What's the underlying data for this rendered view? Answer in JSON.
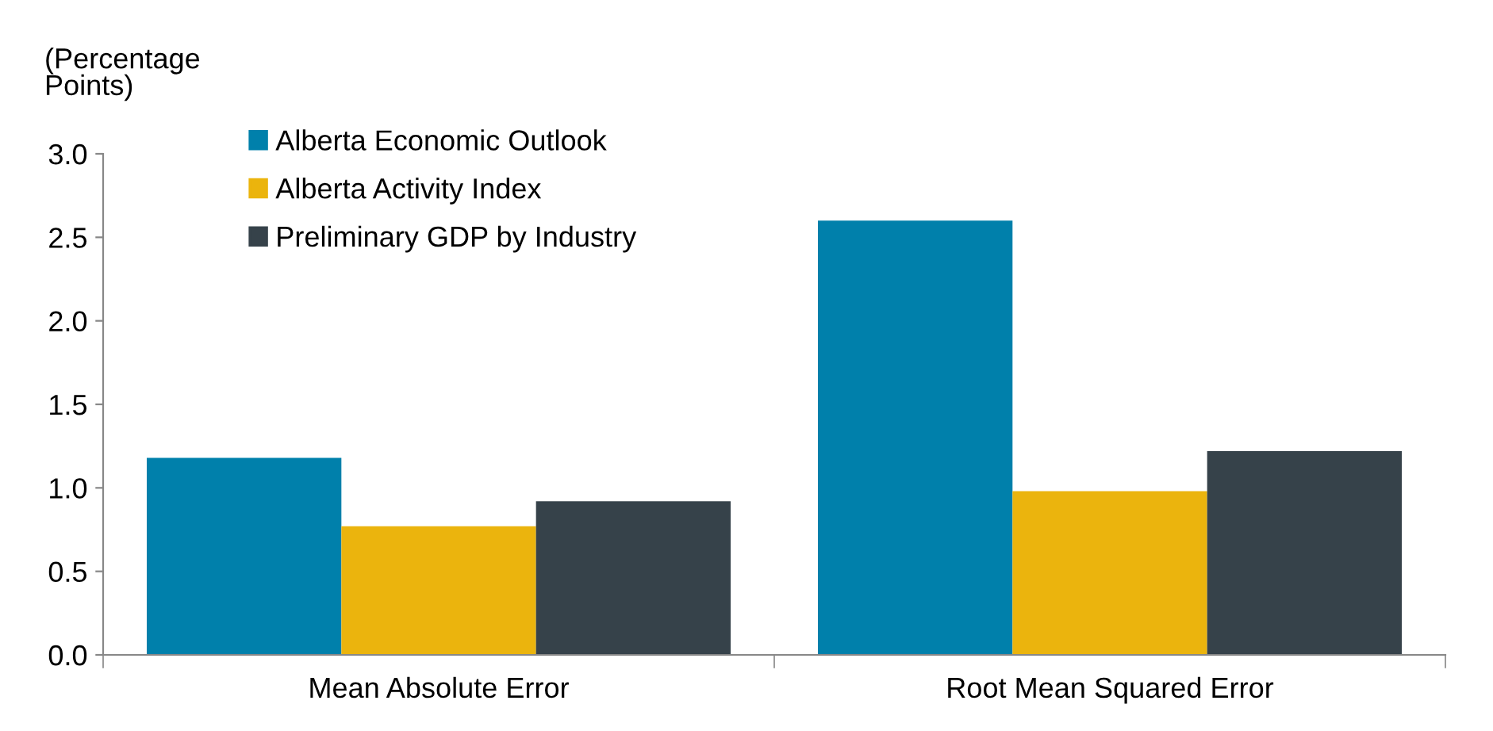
{
  "chart_data": {
    "type": "bar",
    "ylabel": "(Percentage\nPoints)",
    "categories": [
      "Mean Absolute Error",
      "Root Mean Squared Error"
    ],
    "series": [
      {
        "name": "Alberta Economic Outlook",
        "color": "#0080ab",
        "values": [
          1.18,
          2.6
        ]
      },
      {
        "name": "Alberta Activity Index",
        "color": "#ebb40d",
        "values": [
          0.77,
          0.98
        ]
      },
      {
        "name": "Preliminary GDP by Industry",
        "color": "#36424a",
        "values": [
          0.92,
          1.22
        ]
      }
    ],
    "ylim": [
      0,
      3.0
    ],
    "yticks": [
      {
        "value": 0,
        "label": "0.0"
      },
      {
        "value": 0.5,
        "label": "0.5"
      },
      {
        "value": 1,
        "label": "1.0"
      },
      {
        "value": 1.5,
        "label": "1.5"
      },
      {
        "value": 2,
        "label": "2.0"
      },
      {
        "value": 2.5,
        "label": "2.5"
      },
      {
        "value": 3,
        "label": "3.0"
      }
    ],
    "grid": false,
    "legend": "top left"
  }
}
